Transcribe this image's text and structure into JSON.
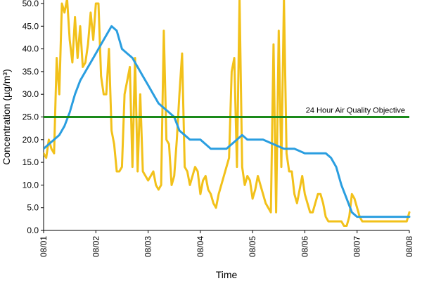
{
  "chart_data": {
    "type": "line",
    "title": "",
    "xlabel": "Time",
    "ylabel": "Concentration (µg/m³)",
    "x_tick_labels": [
      "08/01",
      "08/02",
      "08/03",
      "08/04",
      "08/05",
      "08/06",
      "08/07",
      "08/08"
    ],
    "x_range_days": [
      0,
      7
    ],
    "ylim": [
      0,
      50
    ],
    "y_ticks": [
      0,
      5,
      10,
      15,
      20,
      25,
      30,
      35,
      40,
      45,
      50
    ],
    "y_tick_labels": [
      "0.0",
      "5.0",
      "10.0",
      "15.0",
      "20.0",
      "25.0",
      "30.0",
      "35.0",
      "40.0",
      "45.0",
      "50.0"
    ],
    "grid": false,
    "series": [
      {
        "color": "#f2c11a",
        "x": [
          0.0,
          0.05,
          0.1,
          0.15,
          0.2,
          0.25,
          0.3,
          0.35,
          0.4,
          0.45,
          0.5,
          0.55,
          0.6,
          0.65,
          0.7,
          0.75,
          0.8,
          0.85,
          0.9,
          0.95,
          1.0,
          1.05,
          1.1,
          1.15,
          1.2,
          1.25,
          1.3,
          1.35,
          1.4,
          1.45,
          1.5,
          1.55,
          1.6,
          1.65,
          1.7,
          1.75,
          1.8,
          1.85,
          1.9,
          1.95,
          2.0,
          2.05,
          2.1,
          2.15,
          2.2,
          2.25,
          2.3,
          2.35,
          2.4,
          2.45,
          2.5,
          2.55,
          2.6,
          2.65,
          2.7,
          2.75,
          2.8,
          2.85,
          2.9,
          2.95,
          3.0,
          3.05,
          3.1,
          3.15,
          3.2,
          3.25,
          3.3,
          3.35,
          3.4,
          3.45,
          3.5,
          3.55,
          3.6,
          3.65,
          3.7,
          3.75,
          3.8,
          3.85,
          3.9,
          3.95,
          4.0,
          4.05,
          4.1,
          4.15,
          4.2,
          4.25,
          4.3,
          4.35,
          4.4,
          4.45,
          4.5,
          4.55,
          4.6,
          4.65,
          4.7,
          4.75,
          4.8,
          4.85,
          4.9,
          4.95,
          5.0,
          5.05,
          5.1,
          5.15,
          5.2,
          5.25,
          5.3,
          5.35,
          5.4,
          5.45,
          5.5,
          5.55,
          5.6,
          5.65,
          5.7,
          5.75,
          5.8,
          5.85,
          5.9,
          5.95,
          6.0,
          6.05,
          6.1,
          6.15,
          6.2,
          6.25,
          6.3,
          6.35,
          6.4,
          6.45,
          6.5,
          6.55,
          6.6,
          6.65,
          6.7,
          6.75,
          6.8,
          6.85,
          6.9,
          6.95,
          7.0
        ],
        "y": [
          17,
          16,
          20,
          18,
          17,
          38,
          30,
          50,
          48,
          52,
          42,
          37,
          47,
          38,
          45,
          36,
          37,
          41,
          48,
          42,
          50,
          50,
          34,
          30,
          30,
          40,
          22,
          19,
          13,
          13,
          14,
          30,
          33,
          36,
          14,
          38,
          13,
          30,
          13,
          12,
          11,
          12,
          13,
          10,
          9,
          10,
          44,
          20,
          19,
          10,
          12,
          20,
          30,
          39,
          14,
          13,
          10,
          12,
          14,
          13,
          8,
          11,
          12,
          9,
          8,
          6,
          5,
          8,
          10,
          12,
          14,
          16,
          35,
          38,
          14,
          51,
          14,
          10,
          12,
          11,
          7,
          9,
          12,
          10,
          8,
          6,
          5,
          4,
          41,
          4,
          44,
          14,
          52,
          17,
          13,
          13,
          8,
          6,
          9,
          12,
          8,
          6,
          4,
          4,
          6,
          8,
          8,
          6,
          3,
          2,
          2,
          2,
          2,
          2,
          2,
          1,
          1,
          3,
          8,
          7,
          5,
          3,
          2,
          2,
          2,
          2,
          2,
          2,
          2,
          2,
          2,
          2,
          2,
          2,
          2,
          2,
          2,
          2,
          2,
          2,
          4
        ]
      },
      {
        "color": "#2a9ee0",
        "x": [
          0.0,
          0.1,
          0.2,
          0.3,
          0.4,
          0.5,
          0.6,
          0.7,
          0.8,
          0.9,
          1.0,
          1.1,
          1.2,
          1.3,
          1.4,
          1.5,
          1.6,
          1.7,
          1.8,
          1.9,
          2.0,
          2.1,
          2.2,
          2.3,
          2.4,
          2.5,
          2.6,
          2.7,
          2.8,
          2.9,
          3.0,
          3.1,
          3.2,
          3.3,
          3.4,
          3.5,
          3.6,
          3.7,
          3.8,
          3.9,
          4.0,
          4.2,
          4.4,
          4.6,
          4.8,
          5.0,
          5.1,
          5.2,
          5.3,
          5.4,
          5.5,
          5.6,
          5.7,
          5.8,
          5.9,
          6.0,
          6.1,
          6.2,
          6.3,
          6.4,
          6.5,
          6.6,
          6.7,
          6.8,
          6.9,
          7.0
        ],
        "y": [
          18,
          19,
          20,
          21,
          23,
          26,
          30,
          33,
          35,
          37,
          39,
          41,
          43,
          45,
          44,
          40,
          39,
          38,
          36,
          34,
          32,
          30,
          28,
          27,
          26,
          25,
          22,
          21,
          20,
          20,
          20,
          19,
          18,
          18,
          18,
          18,
          19,
          20,
          21,
          20,
          20,
          20,
          19,
          18,
          18,
          17,
          17,
          17,
          17,
          17,
          16,
          14,
          10,
          7,
          4,
          3,
          3,
          3,
          3,
          3,
          3,
          3,
          3,
          3,
          3,
          3
        ]
      }
    ],
    "reference_line": {
      "value": 25,
      "color": "#1a8a1a",
      "label": "24 Hour Air Quality Objective"
    }
  }
}
